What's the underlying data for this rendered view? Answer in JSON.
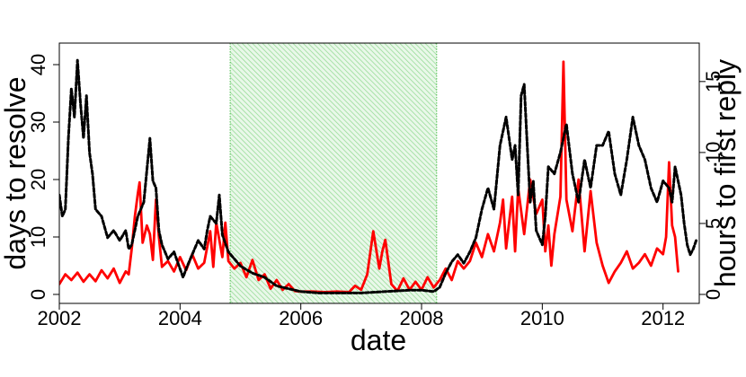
{
  "chart_data": {
    "type": "line",
    "xlabel": "date",
    "ylabel_left": "days to resolve",
    "ylabel_right": "hours to first reply",
    "xlim": [
      2002.0,
      2012.6
    ],
    "ylim_left": [
      0,
      42
    ],
    "ylim_right": [
      0,
      17
    ],
    "x_ticks": [
      2002,
      2004,
      2006,
      2008,
      2010,
      2012
    ],
    "y_ticks_left": [
      0,
      10,
      20,
      30,
      40
    ],
    "y_ticks_right": [
      0,
      5,
      10,
      15
    ],
    "highlight_band": {
      "x_start": 2004.83,
      "x_end": 2008.25,
      "color": "#33cc33",
      "pattern": "hatched"
    },
    "grid": false,
    "legend": "none",
    "series": [
      {
        "axis": "left",
        "color": "#ff0000",
        "style": "solid",
        "points": [
          [
            2002.0,
            1.8
          ],
          [
            2002.1,
            3.5
          ],
          [
            2002.2,
            2.5
          ],
          [
            2002.3,
            3.8
          ],
          [
            2002.4,
            2.2
          ],
          [
            2002.5,
            3.5
          ],
          [
            2002.6,
            2.3
          ],
          [
            2002.7,
            4.2
          ],
          [
            2002.8,
            2.8
          ],
          [
            2002.9,
            4.5
          ],
          [
            2003.0,
            2.0
          ],
          [
            2003.1,
            4.0
          ],
          [
            2003.15,
            3.5
          ],
          [
            2003.2,
            8.0
          ],
          [
            2003.25,
            13.5
          ],
          [
            2003.3,
            17.5
          ],
          [
            2003.33,
            19.5
          ],
          [
            2003.38,
            9.0
          ],
          [
            2003.45,
            12.0
          ],
          [
            2003.5,
            10.5
          ],
          [
            2003.55,
            6.0
          ],
          [
            2003.6,
            16.5
          ],
          [
            2003.65,
            10.0
          ],
          [
            2003.7,
            4.8
          ],
          [
            2003.8,
            5.8
          ],
          [
            2003.9,
            4.0
          ],
          [
            2004.0,
            6.5
          ],
          [
            2004.1,
            4.2
          ],
          [
            2004.2,
            7.0
          ],
          [
            2004.3,
            4.5
          ],
          [
            2004.4,
            5.5
          ],
          [
            2004.5,
            11.0
          ],
          [
            2004.55,
            4.8
          ],
          [
            2004.6,
            12.5
          ],
          [
            2004.7,
            6.5
          ],
          [
            2004.75,
            12.5
          ],
          [
            2004.8,
            5.8
          ],
          [
            2004.9,
            4.5
          ],
          [
            2005.0,
            5.5
          ],
          [
            2005.1,
            3.0
          ],
          [
            2005.2,
            6.0
          ],
          [
            2005.3,
            2.5
          ],
          [
            2005.4,
            3.5
          ],
          [
            2005.5,
            1.0
          ],
          [
            2005.6,
            2.5
          ],
          [
            2005.7,
            0.8
          ],
          [
            2005.8,
            1.8
          ],
          [
            2005.9,
            0.6
          ],
          [
            2006.0,
            0.5
          ],
          [
            2006.2,
            0.5
          ],
          [
            2006.4,
            0.4
          ],
          [
            2006.6,
            0.5
          ],
          [
            2006.8,
            0.4
          ],
          [
            2006.9,
            1.5
          ],
          [
            2007.0,
            0.8
          ],
          [
            2007.1,
            3.5
          ],
          [
            2007.2,
            11.0
          ],
          [
            2007.3,
            4.5
          ],
          [
            2007.35,
            7.5
          ],
          [
            2007.4,
            9.5
          ],
          [
            2007.5,
            1.8
          ],
          [
            2007.6,
            0.6
          ],
          [
            2007.7,
            2.8
          ],
          [
            2007.8,
            0.8
          ],
          [
            2007.9,
            2.2
          ],
          [
            2008.0,
            0.8
          ],
          [
            2008.1,
            3.0
          ],
          [
            2008.2,
            1.2
          ],
          [
            2008.3,
            2.5
          ],
          [
            2008.4,
            4.5
          ],
          [
            2008.5,
            2.5
          ],
          [
            2008.6,
            5.8
          ],
          [
            2008.7,
            4.5
          ],
          [
            2008.8,
            5.8
          ],
          [
            2008.9,
            9.0
          ],
          [
            2009.0,
            6.5
          ],
          [
            2009.1,
            10.5
          ],
          [
            2009.2,
            7.5
          ],
          [
            2009.3,
            12.5
          ],
          [
            2009.35,
            16.5
          ],
          [
            2009.4,
            8.0
          ],
          [
            2009.5,
            17.0
          ],
          [
            2009.55,
            7.5
          ],
          [
            2009.6,
            18.5
          ],
          [
            2009.7,
            10.5
          ],
          [
            2009.8,
            20.0
          ],
          [
            2009.9,
            14.0
          ],
          [
            2010.0,
            16.5
          ],
          [
            2010.05,
            7.5
          ],
          [
            2010.1,
            12.0
          ],
          [
            2010.15,
            5.0
          ],
          [
            2010.2,
            10.5
          ],
          [
            2010.3,
            17.0
          ],
          [
            2010.35,
            40.5
          ],
          [
            2010.4,
            16.5
          ],
          [
            2010.5,
            11.0
          ],
          [
            2010.6,
            20.0
          ],
          [
            2010.7,
            7.5
          ],
          [
            2010.8,
            18.0
          ],
          [
            2010.9,
            9.0
          ],
          [
            2011.0,
            5.0
          ],
          [
            2011.1,
            2.0
          ],
          [
            2011.2,
            4.0
          ],
          [
            2011.3,
            5.5
          ],
          [
            2011.4,
            7.5
          ],
          [
            2011.5,
            4.5
          ],
          [
            2011.6,
            5.5
          ],
          [
            2011.7,
            7.0
          ],
          [
            2011.8,
            5.0
          ],
          [
            2011.9,
            8.0
          ],
          [
            2012.0,
            7.0
          ],
          [
            2012.05,
            10.0
          ],
          [
            2012.1,
            23.0
          ],
          [
            2012.15,
            12.0
          ],
          [
            2012.2,
            10.0
          ],
          [
            2012.25,
            4.0
          ]
        ]
      },
      {
        "axis": "right",
        "color": "#000000",
        "style": "dashed",
        "points": [
          [
            2002.0,
            7.0
          ],
          [
            2002.05,
            5.5
          ],
          [
            2002.1,
            6.0
          ],
          [
            2002.15,
            11.0
          ],
          [
            2002.2,
            14.5
          ],
          [
            2002.25,
            12.5
          ],
          [
            2002.3,
            16.5
          ],
          [
            2002.35,
            13.5
          ],
          [
            2002.4,
            11.0
          ],
          [
            2002.45,
            14.0
          ],
          [
            2002.5,
            10.0
          ],
          [
            2002.55,
            8.5
          ],
          [
            2002.6,
            6.0
          ],
          [
            2002.7,
            5.5
          ],
          [
            2002.8,
            4.0
          ],
          [
            2002.9,
            4.5
          ],
          [
            2003.0,
            3.8
          ],
          [
            2003.1,
            4.5
          ],
          [
            2003.15,
            3.2
          ],
          [
            2003.2,
            3.5
          ],
          [
            2003.3,
            5.5
          ],
          [
            2003.4,
            6.5
          ],
          [
            2003.5,
            11.0
          ],
          [
            2003.55,
            8.0
          ],
          [
            2003.6,
            7.5
          ],
          [
            2003.65,
            4.5
          ],
          [
            2003.7,
            3.5
          ],
          [
            2003.8,
            2.5
          ],
          [
            2003.9,
            3.0
          ],
          [
            2004.0,
            1.8
          ],
          [
            2004.05,
            1.2
          ],
          [
            2004.1,
            1.8
          ],
          [
            2004.2,
            2.8
          ],
          [
            2004.3,
            3.8
          ],
          [
            2004.4,
            3.2
          ],
          [
            2004.45,
            4.5
          ],
          [
            2004.5,
            5.5
          ],
          [
            2004.6,
            5.0
          ],
          [
            2004.65,
            7.0
          ],
          [
            2004.7,
            4.2
          ],
          [
            2004.8,
            3.0
          ],
          [
            2004.9,
            2.5
          ],
          [
            2005.0,
            2.0
          ],
          [
            2005.2,
            1.5
          ],
          [
            2005.4,
            1.2
          ],
          [
            2005.6,
            0.6
          ],
          [
            2005.8,
            0.4
          ],
          [
            2006.0,
            0.2
          ],
          [
            2006.3,
            0.1
          ],
          [
            2006.6,
            0.1
          ],
          [
            2007.0,
            0.1
          ],
          [
            2007.4,
            0.2
          ],
          [
            2007.8,
            0.3
          ],
          [
            2008.0,
            0.3
          ],
          [
            2008.2,
            0.2
          ],
          [
            2008.3,
            0.5
          ],
          [
            2008.4,
            1.5
          ],
          [
            2008.5,
            2.3
          ],
          [
            2008.6,
            2.8
          ],
          [
            2008.7,
            2.2
          ],
          [
            2008.8,
            3.0
          ],
          [
            2008.9,
            4.0
          ],
          [
            2009.0,
            6.0
          ],
          [
            2009.1,
            7.5
          ],
          [
            2009.2,
            6.0
          ],
          [
            2009.3,
            10.5
          ],
          [
            2009.4,
            12.5
          ],
          [
            2009.5,
            9.5
          ],
          [
            2009.55,
            10.5
          ],
          [
            2009.6,
            7.0
          ],
          [
            2009.65,
            14.0
          ],
          [
            2009.7,
            14.8
          ],
          [
            2009.75,
            10.5
          ],
          [
            2009.8,
            6.5
          ],
          [
            2009.85,
            8.0
          ],
          [
            2009.9,
            4.5
          ],
          [
            2010.0,
            3.5
          ],
          [
            2010.05,
            5.5
          ],
          [
            2010.1,
            9.0
          ],
          [
            2010.2,
            8.5
          ],
          [
            2010.3,
            10.0
          ],
          [
            2010.4,
            12.0
          ],
          [
            2010.5,
            8.5
          ],
          [
            2010.6,
            6.5
          ],
          [
            2010.7,
            9.5
          ],
          [
            2010.8,
            7.5
          ],
          [
            2010.9,
            10.5
          ],
          [
            2011.0,
            10.5
          ],
          [
            2011.1,
            11.5
          ],
          [
            2011.2,
            8.5
          ],
          [
            2011.3,
            7.0
          ],
          [
            2011.4,
            9.5
          ],
          [
            2011.5,
            12.5
          ],
          [
            2011.6,
            10.5
          ],
          [
            2011.7,
            9.5
          ],
          [
            2011.8,
            7.5
          ],
          [
            2011.9,
            6.5
          ],
          [
            2012.0,
            8.0
          ],
          [
            2012.1,
            7.5
          ],
          [
            2012.15,
            6.5
          ],
          [
            2012.2,
            9.0
          ],
          [
            2012.3,
            7.0
          ],
          [
            2012.35,
            5.0
          ],
          [
            2012.4,
            3.5
          ],
          [
            2012.45,
            2.8
          ],
          [
            2012.5,
            3.2
          ],
          [
            2012.55,
            3.8
          ]
        ]
      }
    ]
  }
}
